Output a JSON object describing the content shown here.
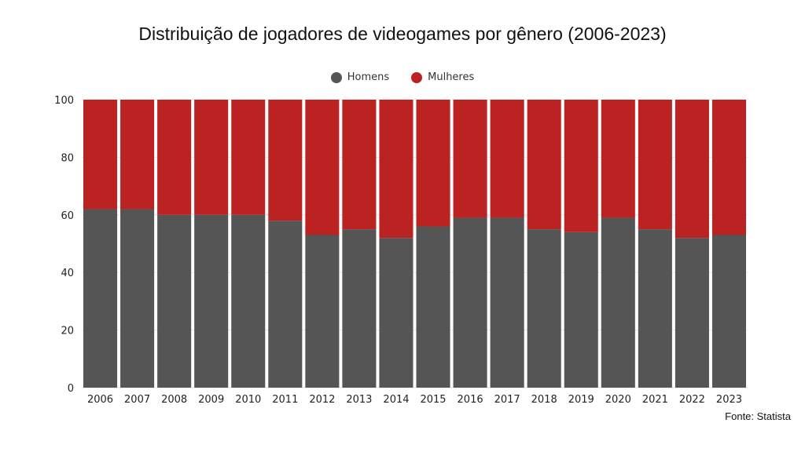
{
  "chart_data": {
    "type": "bar",
    "stacked": true,
    "title": "Distribuição de jogadores de videogames por gênero (2006-2023)",
    "categories": [
      "2006",
      "2007",
      "2008",
      "2009",
      "2010",
      "2011",
      "2012",
      "2013",
      "2014",
      "2015",
      "2016",
      "2017",
      "2018",
      "2019",
      "2020",
      "2021",
      "2022",
      "2023"
    ],
    "series": [
      {
        "name": "Homens",
        "color": "#555555",
        "values": [
          62,
          62,
          60,
          60,
          60,
          58,
          53,
          55,
          52,
          56,
          59,
          59,
          55,
          54,
          59,
          55,
          52,
          53
        ]
      },
      {
        "name": "Mulheres",
        "color": "#bb2222",
        "values": [
          38,
          38,
          40,
          40,
          40,
          42,
          47,
          45,
          48,
          44,
          41,
          41,
          45,
          46,
          41,
          45,
          48,
          47
        ]
      }
    ],
    "ylim": [
      0,
      100
    ],
    "yticks": [
      0,
      20,
      40,
      60,
      80,
      100
    ],
    "xlabel": "",
    "ylabel": "",
    "legend": "top-center",
    "grid": true,
    "source": "Fonte: Statista"
  }
}
